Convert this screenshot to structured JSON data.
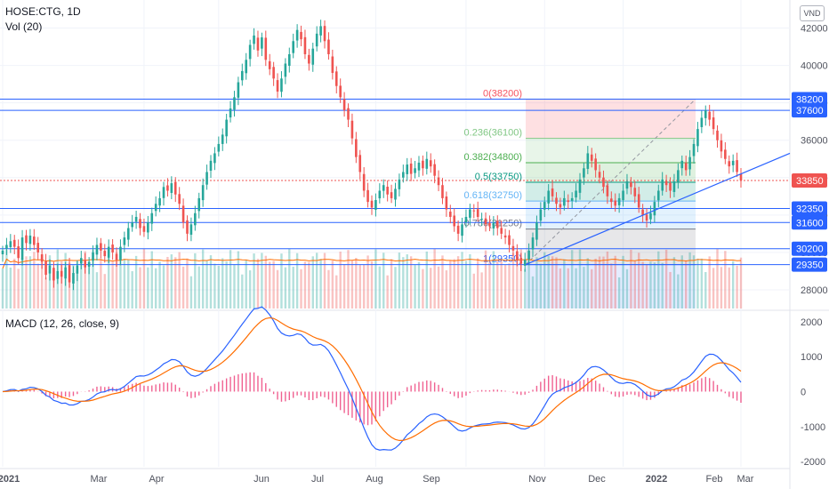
{
  "header": {
    "symbol_line": "HOSE:CTG, 1D",
    "vol_line": "Vol (20)",
    "macd_line": "MACD (12, 26, close, 9)",
    "currency_badge": "VND"
  },
  "colors": {
    "up": "#26a69a",
    "down": "#ef5350",
    "hline": "#2962ff",
    "macd": "#2962ff",
    "signal": "#ff6d00",
    "hist": "#e91e63",
    "vol_ma": "#ff6d00",
    "current_price": "#ef5350"
  },
  "chart_data": [
    {
      "type": "candlestick",
      "title": "HOSE:CTG, 1D",
      "y_axis_ticks": [
        28000,
        30000,
        32000,
        34000,
        36000,
        38000,
        40000,
        42000
      ],
      "ylim": [
        27000,
        43500
      ],
      "x_axis_labels": [
        "2021",
        "Mar",
        "Apr",
        "Jun",
        "Jul",
        "Aug",
        "Sep",
        "Nov",
        "Dec",
        "2022",
        "Feb",
        "Mar"
      ],
      "horizontal_levels": [
        {
          "label": "38200",
          "value": 38200
        },
        {
          "label": "37600",
          "value": 37600
        },
        {
          "label": "32350",
          "value": 32350
        },
        {
          "label": "31600",
          "value": 31600
        },
        {
          "label": "30200",
          "value": 30200
        },
        {
          "label": "29350",
          "value": 29350
        }
      ],
      "current_price": {
        "label": "33850",
        "value": 33850
      },
      "fibonacci_retracement": [
        {
          "label": "0(38200)",
          "value": 38200
        },
        {
          "label": "0.236(36100)",
          "value": 36100
        },
        {
          "label": "0.382(34800)",
          "value": 34800
        },
        {
          "label": "0.5(33750)",
          "value": 33750
        },
        {
          "label": "0.618(32750)",
          "value": 32750
        },
        {
          "label": "0.786(31250)",
          "value": 31250
        },
        {
          "label": "1(29350)",
          "value": 29350
        }
      ],
      "trend_line": [
        {
          "date_index": 0.0,
          "value": 29350
        },
        {
          "date_index": 1.0,
          "value": 35300
        }
      ],
      "closes": [
        30100,
        30400,
        30600,
        30300,
        29700,
        30800,
        30500,
        30900,
        30400,
        30000,
        29500,
        28800,
        29300,
        28500,
        29000,
        28700,
        29200,
        28400,
        28900,
        29300,
        29700,
        29200,
        29500,
        30000,
        30400,
        30100,
        29800,
        30300,
        30000,
        29600,
        30300,
        30800,
        31300,
        31600,
        31900,
        31300,
        31100,
        31600,
        32100,
        32600,
        32900,
        33500,
        33300,
        33700,
        33100,
        32600,
        31600,
        31000,
        31500,
        32100,
        32900,
        33600,
        34300,
        34900,
        35300,
        35800,
        36300,
        37100,
        37700,
        38300,
        39100,
        39700,
        40300,
        41100,
        41600,
        40800,
        41500,
        40300,
        39800,
        39300,
        38600,
        39300,
        40100,
        40600,
        41300,
        41900,
        41400,
        40600,
        40100,
        40900,
        41700,
        42100,
        41300,
        40600,
        39600,
        38900,
        38300,
        37600,
        37100,
        36100,
        35100,
        34300,
        33300,
        32700,
        32400,
        32800,
        33300,
        33600,
        33100,
        32900,
        33400,
        33900,
        34300,
        34700,
        34200,
        34500,
        34800,
        34500,
        35000,
        34600,
        34100,
        33600,
        32900,
        32300,
        31900,
        31400,
        31000,
        31500,
        31900,
        32300,
        32200,
        31900,
        31800,
        31500,
        31400,
        31600,
        31300,
        31000,
        30800,
        30400,
        30100,
        29600,
        29400,
        29600,
        30100,
        30800,
        31600,
        32300,
        32700,
        33300,
        33000,
        32600,
        32400,
        32900,
        32700,
        32900,
        33300,
        33900,
        34500,
        35300,
        34900,
        34400,
        34000,
        33500,
        33000,
        32700,
        32500,
        32900,
        33300,
        33800,
        33500,
        33000,
        32400,
        32000,
        31700,
        32100,
        32700,
        33300,
        33900,
        33600,
        33300,
        33800,
        34400,
        34900,
        34400,
        35100,
        35800,
        36600,
        37200,
        37600,
        37100,
        36600,
        36000,
        35400,
        35000,
        34600,
        34900,
        34300,
        33850
      ],
      "macd_ticks": [
        2000,
        1000,
        0,
        -1000,
        -2000
      ],
      "macd_range": [
        -2150,
        2250
      ]
    }
  ]
}
